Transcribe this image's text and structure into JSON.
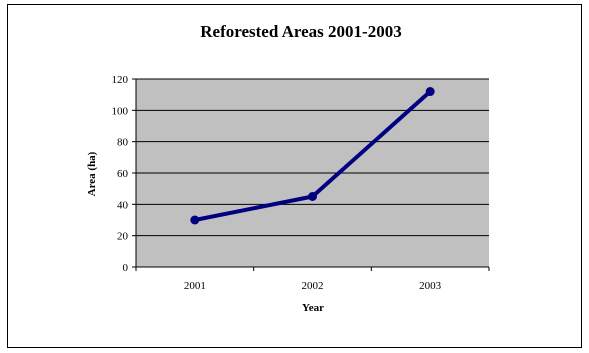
{
  "chart_data": {
    "type": "line",
    "title": "Reforested Areas 2001-2003",
    "xlabel": "Year",
    "ylabel": "Area (ha)",
    "categories": [
      "2001",
      "2002",
      "2003"
    ],
    "series": [
      {
        "values": [
          30,
          45,
          112
        ]
      }
    ],
    "ylim": [
      0,
      120
    ],
    "yticks": [
      "0",
      "20",
      "40",
      "60",
      "80",
      "100",
      "120"
    ],
    "grid": true,
    "legend": "none",
    "colors": {
      "plot_background": "#c0c0c0",
      "line": "#000080",
      "gridline": "#000000"
    }
  }
}
